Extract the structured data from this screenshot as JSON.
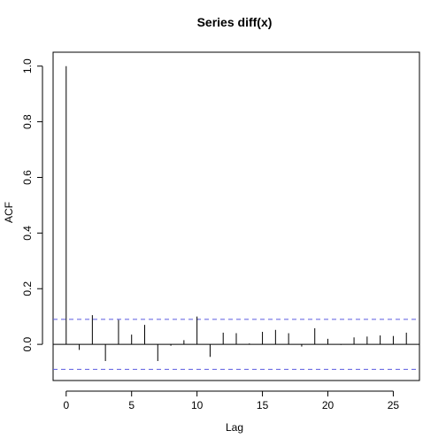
{
  "chart_data": {
    "type": "bar",
    "title": "Series  diff(x)",
    "xlabel": "Lag",
    "ylabel": "ACF",
    "xlim": [
      -1,
      27
    ],
    "ylim": [
      -0.13,
      1.05
    ],
    "x_ticks": [
      0,
      5,
      10,
      15,
      20,
      25
    ],
    "y_ticks": [
      0.0,
      0.2,
      0.4,
      0.6,
      0.8,
      1.0
    ],
    "y_tick_labels": [
      "0.0",
      "0.2",
      "0.4",
      "0.6",
      "0.8",
      "1.0"
    ],
    "lags": [
      0,
      1,
      2,
      3,
      4,
      5,
      6,
      7,
      8,
      9,
      10,
      11,
      12,
      13,
      14,
      15,
      16,
      17,
      18,
      19,
      20,
      21,
      22,
      23,
      24,
      25,
      26
    ],
    "acf": [
      1.0,
      -0.02,
      0.105,
      -0.06,
      0.088,
      0.035,
      0.07,
      -0.06,
      -0.005,
      0.015,
      0.1,
      -0.045,
      0.042,
      0.04,
      0.003,
      0.045,
      0.052,
      0.04,
      -0.008,
      0.058,
      0.02,
      -0.002,
      0.025,
      0.028,
      0.032,
      0.03,
      0.042
    ],
    "conf_limit": 0.09,
    "conf_color": "#5b5be0",
    "grid": false
  }
}
